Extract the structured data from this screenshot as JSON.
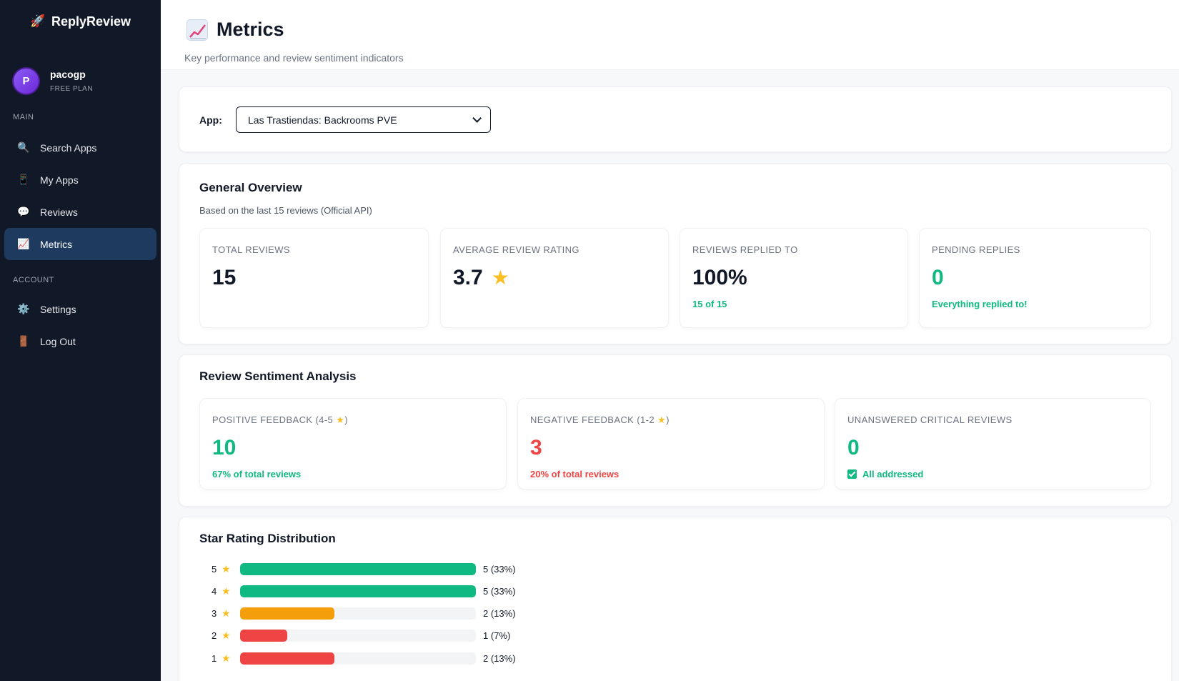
{
  "brand": {
    "name": "ReplyReview",
    "icon": "rocket-icon"
  },
  "user": {
    "initial": "P",
    "name": "pacogp",
    "plan": "FREE PLAN"
  },
  "sidebar": {
    "main_label": "MAIN",
    "account_label": "ACCOUNT",
    "items": [
      {
        "label": "Search Apps",
        "icon": "magnifier-icon"
      },
      {
        "label": "My Apps",
        "icon": "phone-icon"
      },
      {
        "label": "Reviews",
        "icon": "speech-bubble-icon"
      },
      {
        "label": "Metrics",
        "icon": "chart-icon",
        "active": true
      },
      {
        "label": "Settings",
        "icon": "gear-icon"
      },
      {
        "label": "Log Out",
        "icon": "door-icon"
      }
    ]
  },
  "header": {
    "title": "Metrics",
    "subtitle": "Key performance and review sentiment indicators"
  },
  "app_select": {
    "label": "App:",
    "value": "Las Trastiendas: Backrooms PVE"
  },
  "overview": {
    "title": "General Overview",
    "note": "Based on the last 15 reviews (Official API)",
    "metrics": [
      {
        "label": "TOTAL REVIEWS",
        "value": "15",
        "sub": ""
      },
      {
        "label": "AVERAGE REVIEW RATING",
        "value": "3.7",
        "sub": ""
      },
      {
        "label": "REVIEWS REPLIED TO",
        "value": "100%",
        "sub": "15 of 15"
      },
      {
        "label": "PENDING REPLIES",
        "value": "0",
        "sub": "Everything replied to!"
      }
    ]
  },
  "sentiment": {
    "title": "Review Sentiment Analysis",
    "positive": {
      "label_prefix": "POSITIVE FEEDBACK (4-5",
      "label_suffix": ")",
      "value": "10",
      "sub": "67% of total reviews"
    },
    "negative": {
      "label_prefix": "NEGATIVE FEEDBACK (1-2",
      "label_suffix": ")",
      "value": "3",
      "sub": "20% of total reviews"
    },
    "critical": {
      "label": "UNANSWERED CRITICAL REVIEWS",
      "value": "0",
      "sub": "All addressed"
    }
  },
  "distribution": {
    "title": "Star Rating Distribution",
    "rows": [
      {
        "stars": "5",
        "fraction": 1.0,
        "count": "5 (33%)",
        "color": "#10b981"
      },
      {
        "stars": "4",
        "fraction": 1.0,
        "count": "5 (33%)",
        "color": "#10b981"
      },
      {
        "stars": "3",
        "fraction": 0.4,
        "count": "2 (13%)",
        "color": "#f59e0b"
      },
      {
        "stars": "2",
        "fraction": 0.2,
        "count": "1 (7%)",
        "color": "#ef4444"
      },
      {
        "stars": "1",
        "fraction": 0.4,
        "count": "2 (13%)",
        "color": "#ef4444"
      }
    ]
  },
  "colors": {
    "sidebar_bg": "#111827",
    "accent_green": "#10b981",
    "accent_red": "#ef4444",
    "star": "#fbbf24",
    "active_nav": "#1e3a5f"
  }
}
